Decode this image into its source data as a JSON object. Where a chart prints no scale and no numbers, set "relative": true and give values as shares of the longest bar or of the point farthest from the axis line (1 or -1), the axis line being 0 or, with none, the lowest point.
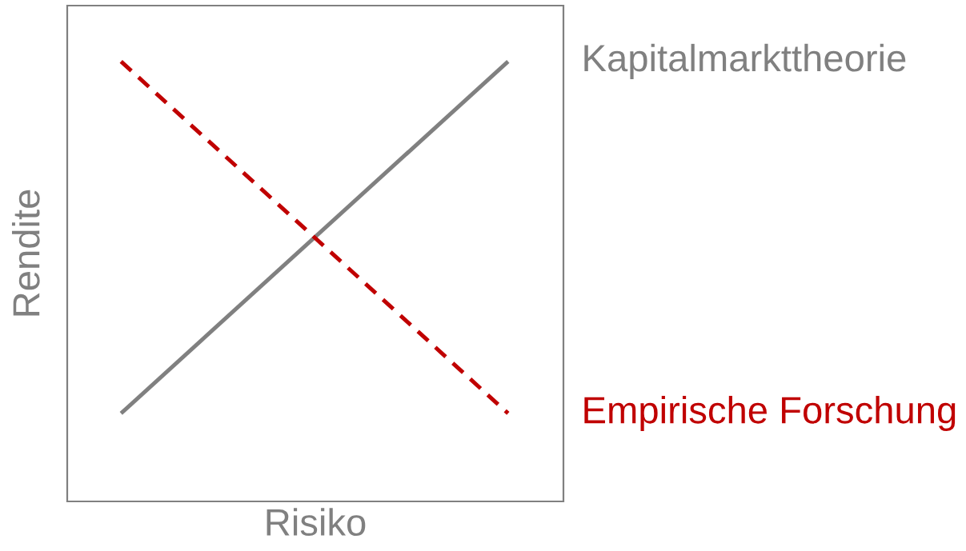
{
  "chart_data": {
    "type": "line",
    "relative": true,
    "categories": [
      null,
      null
    ],
    "xlabel": "Risiko",
    "ylabel": "Rendite",
    "tick_labels": false,
    "legend": false,
    "marker": "none",
    "series": [
      {
        "name": "Kapitalmarkttheorie",
        "color": "#808080",
        "values": [
          0.2,
          1
        ],
        "line_style": "solid"
      },
      {
        "name": "Empirische Forschung",
        "color": "#c00000",
        "values": [
          1,
          0.2
        ],
        "line_style": "dashed"
      }
    ]
  }
}
